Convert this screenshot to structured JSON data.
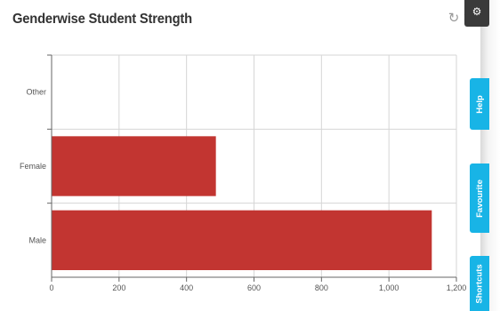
{
  "widget": {
    "title": "Genderwise Student Strength",
    "refresh_icon": "refresh-icon",
    "close_icon": "close-icon",
    "settings_icon": "gear-icon"
  },
  "side_tabs": {
    "help": "Help",
    "favourite": "Favourite",
    "shortcuts": "Shortcuts"
  },
  "colors": {
    "bar": "#c23531",
    "tab": "#18b4e6",
    "grid": "#d6d6d6"
  },
  "chart_data": {
    "type": "bar",
    "orientation": "horizontal",
    "categories": [
      "Other",
      "Female",
      "Male"
    ],
    "values": [
      0,
      487,
      1127
    ],
    "xlim": [
      0,
      1200
    ],
    "xticks": [
      "0",
      "200",
      "400",
      "600",
      "800",
      "1,000",
      "1,200"
    ],
    "grid": true
  }
}
